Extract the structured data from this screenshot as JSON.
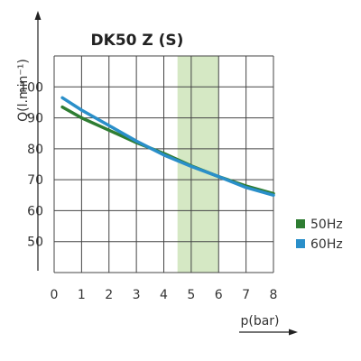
{
  "chart_data": {
    "type": "line",
    "title": "DK50 Z (S)",
    "xlabel": "p(bar)",
    "ylabel": "Q(l.min⁻¹)",
    "xlim": [
      0,
      8
    ],
    "ylim": [
      40,
      110
    ],
    "x_ticks": [
      "0",
      "1",
      "2",
      "3",
      "4",
      "5",
      "6",
      "7",
      "8"
    ],
    "y_ticks": [
      "50",
      "60",
      "70",
      "80",
      "90",
      "100"
    ],
    "grid": true,
    "highlight_band": {
      "x_from": 4.5,
      "x_to": 6,
      "color": "#d5e8c4"
    },
    "legend_position": "right",
    "series": [
      {
        "name": "50Hz",
        "color": "#2e7d32",
        "x": [
          0.3,
          1,
          2,
          3,
          4,
          5,
          6,
          7,
          8
        ],
        "y": [
          93.5,
          90,
          86,
          82,
          78.5,
          74.5,
          71,
          68,
          65.5
        ]
      },
      {
        "name": "60Hz",
        "color": "#2a8fc9",
        "x": [
          0.3,
          1,
          2,
          3,
          4,
          5,
          6,
          7,
          8
        ],
        "y": [
          96.5,
          92.5,
          87.5,
          82.5,
          78,
          74.3,
          71,
          67.5,
          65
        ]
      }
    ]
  }
}
